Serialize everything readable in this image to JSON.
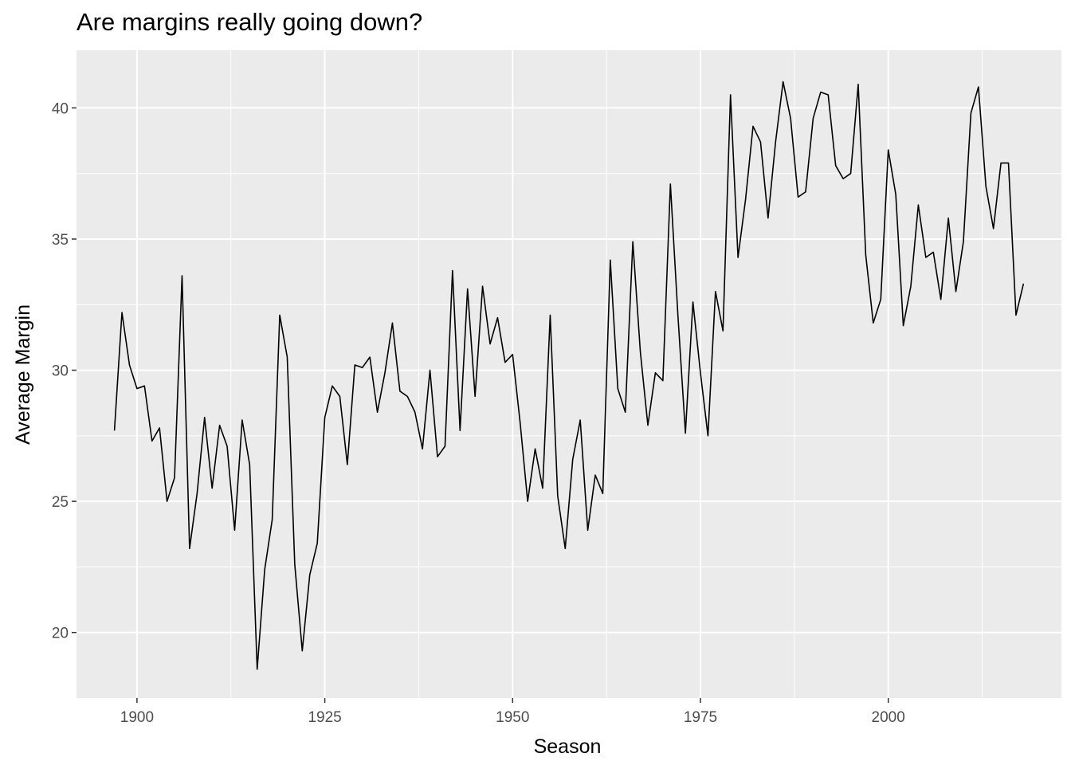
{
  "chart_data": {
    "type": "line",
    "title": "Are margins really going down?",
    "xlabel": "Season",
    "ylabel": "Average Margin",
    "xlim": [
      1891.95,
      2023.05
    ],
    "ylim": [
      17.5,
      42.2
    ],
    "x_ticks": [
      1900,
      1925,
      1950,
      1975,
      2000
    ],
    "y_ticks": [
      20,
      25,
      30,
      35,
      40
    ],
    "grid": true,
    "legend": "none",
    "colors": {
      "panel": "#ebebeb",
      "grid": "#ffffff",
      "line": "#000000",
      "tick_text": "#4d4d4d"
    },
    "series": [
      {
        "x": [
          1897,
          1898,
          1899,
          1900,
          1901,
          1902,
          1903,
          1904,
          1905,
          1906,
          1907,
          1908,
          1909,
          1910,
          1911,
          1912,
          1913,
          1914,
          1915,
          1916,
          1917,
          1918,
          1919,
          1920,
          1921,
          1922,
          1923,
          1924,
          1925,
          1926,
          1927,
          1928,
          1929,
          1930,
          1931,
          1932,
          1933,
          1934,
          1935,
          1936,
          1937,
          1938,
          1939,
          1940,
          1941,
          1942,
          1943,
          1944,
          1945,
          1946,
          1947,
          1948,
          1949,
          1950,
          1951,
          1952,
          1953,
          1954,
          1955,
          1956,
          1957,
          1958,
          1959,
          1960,
          1961,
          1962,
          1963,
          1964,
          1965,
          1966,
          1967,
          1968,
          1969,
          1970,
          1971,
          1972,
          1973,
          1974,
          1975,
          1976,
          1977,
          1978,
          1979,
          1980,
          1981,
          1982,
          1983,
          1984,
          1985,
          1986,
          1987,
          1988,
          1989,
          1990,
          1991,
          1992,
          1993,
          1994,
          1995,
          1996,
          1997,
          1998,
          1999,
          2000,
          2001,
          2002,
          2003,
          2004,
          2005,
          2006,
          2007,
          2008,
          2009,
          2010,
          2011,
          2012,
          2013,
          2014,
          2015,
          2016,
          2017,
          2018
        ],
        "y": [
          27.7,
          32.2,
          30.2,
          29.3,
          29.4,
          27.3,
          27.8,
          25.0,
          25.9,
          33.6,
          23.2,
          25.3,
          28.2,
          25.5,
          27.9,
          27.1,
          23.9,
          28.1,
          26.4,
          18.6,
          22.4,
          24.3,
          32.1,
          30.5,
          22.6,
          19.3,
          22.2,
          23.4,
          28.2,
          29.4,
          29.0,
          26.4,
          30.2,
          30.1,
          30.5,
          28.4,
          29.9,
          31.8,
          29.2,
          29.0,
          28.4,
          27.0,
          30.0,
          26.7,
          27.1,
          33.8,
          27.7,
          33.1,
          29.0,
          33.2,
          31.0,
          32.0,
          30.3,
          30.6,
          28.0,
          25.0,
          27.0,
          25.5,
          32.1,
          25.2,
          23.2,
          26.6,
          28.1,
          23.9,
          26.0,
          25.3,
          34.2,
          29.3,
          28.4,
          34.9,
          30.7,
          27.9,
          29.9,
          29.6,
          37.1,
          32.1,
          27.6,
          32.6,
          29.9,
          27.5,
          33.0,
          31.5,
          40.5,
          34.3,
          36.5,
          39.3,
          38.7,
          35.8,
          38.7,
          41.0,
          39.6,
          36.6,
          36.8,
          39.6,
          40.6,
          40.5,
          37.8,
          37.3,
          37.5,
          40.9,
          34.4,
          31.8,
          32.7,
          38.4,
          36.7,
          31.7,
          33.2,
          36.3,
          34.3,
          34.5,
          32.7,
          35.8,
          33.0,
          34.9,
          39.8,
          40.8,
          37.0,
          35.4,
          37.9,
          37.9,
          32.1,
          33.3
        ]
      }
    ]
  }
}
